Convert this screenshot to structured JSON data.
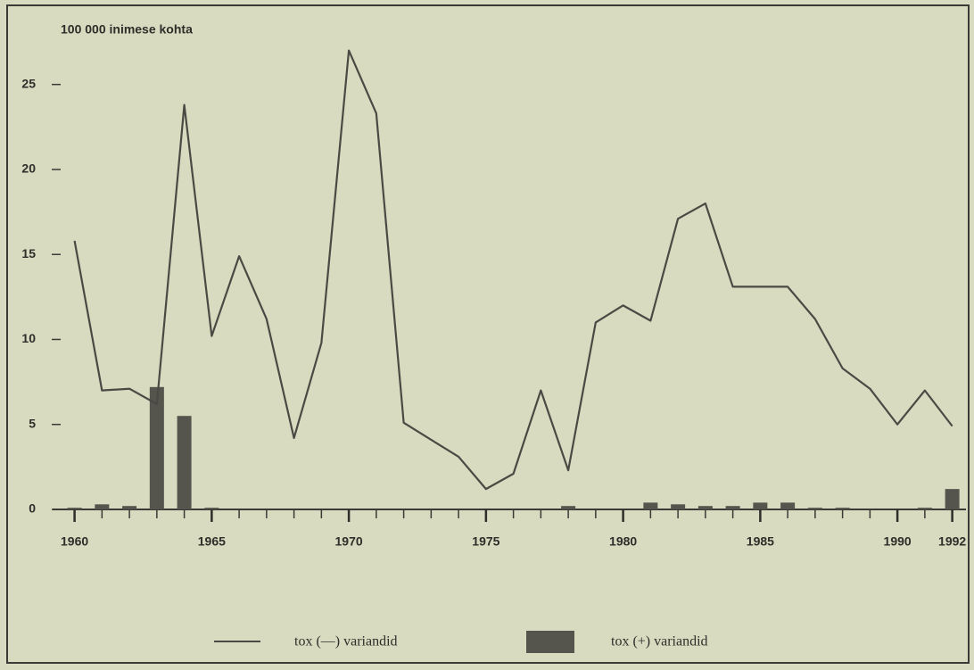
{
  "chart_data": {
    "type": "combo",
    "ylabel": "100 000 inimese kohta",
    "x": [
      1960,
      1961,
      1962,
      1963,
      1964,
      1965,
      1966,
      1967,
      1968,
      1969,
      1970,
      1971,
      1972,
      1973,
      1974,
      1975,
      1976,
      1977,
      1978,
      1979,
      1980,
      1981,
      1982,
      1983,
      1984,
      1985,
      1986,
      1987,
      1988,
      1989,
      1990,
      1991,
      1992
    ],
    "series": [
      {
        "name": "tox (—) variandid",
        "type": "line",
        "color": "#4a4a44",
        "values": [
          15.8,
          7.0,
          7.1,
          6.2,
          23.8,
          10.2,
          14.9,
          11.2,
          4.2,
          9.8,
          27.0,
          23.3,
          5.1,
          4.1,
          3.1,
          1.2,
          2.1,
          7.0,
          2.3,
          11.0,
          12.0,
          11.1,
          17.1,
          18.0,
          13.1,
          13.1,
          13.1,
          11.2,
          8.3,
          7.1,
          5.0,
          7.0,
          4.9
        ]
      },
      {
        "name": "tox (+) variandid",
        "type": "bar",
        "color": "#55554d",
        "values": [
          0.1,
          0.3,
          0.2,
          7.2,
          5.5,
          0.1,
          0,
          0,
          0,
          0,
          0,
          0,
          0,
          0,
          0,
          0,
          0,
          0,
          0.2,
          0,
          0,
          0.4,
          0.3,
          0.2,
          0.2,
          0.4,
          0.4,
          0.1,
          0.1,
          0,
          0,
          0.1,
          1.2
        ]
      }
    ],
    "xlim": [
      1959.2,
      1992.5
    ],
    "xticks": [
      1960,
      1965,
      1970,
      1975,
      1980,
      1985,
      1990,
      1992
    ],
    "ylim": [
      0,
      28.5
    ],
    "yticks": [
      0,
      5,
      10,
      15,
      20,
      25
    ]
  }
}
